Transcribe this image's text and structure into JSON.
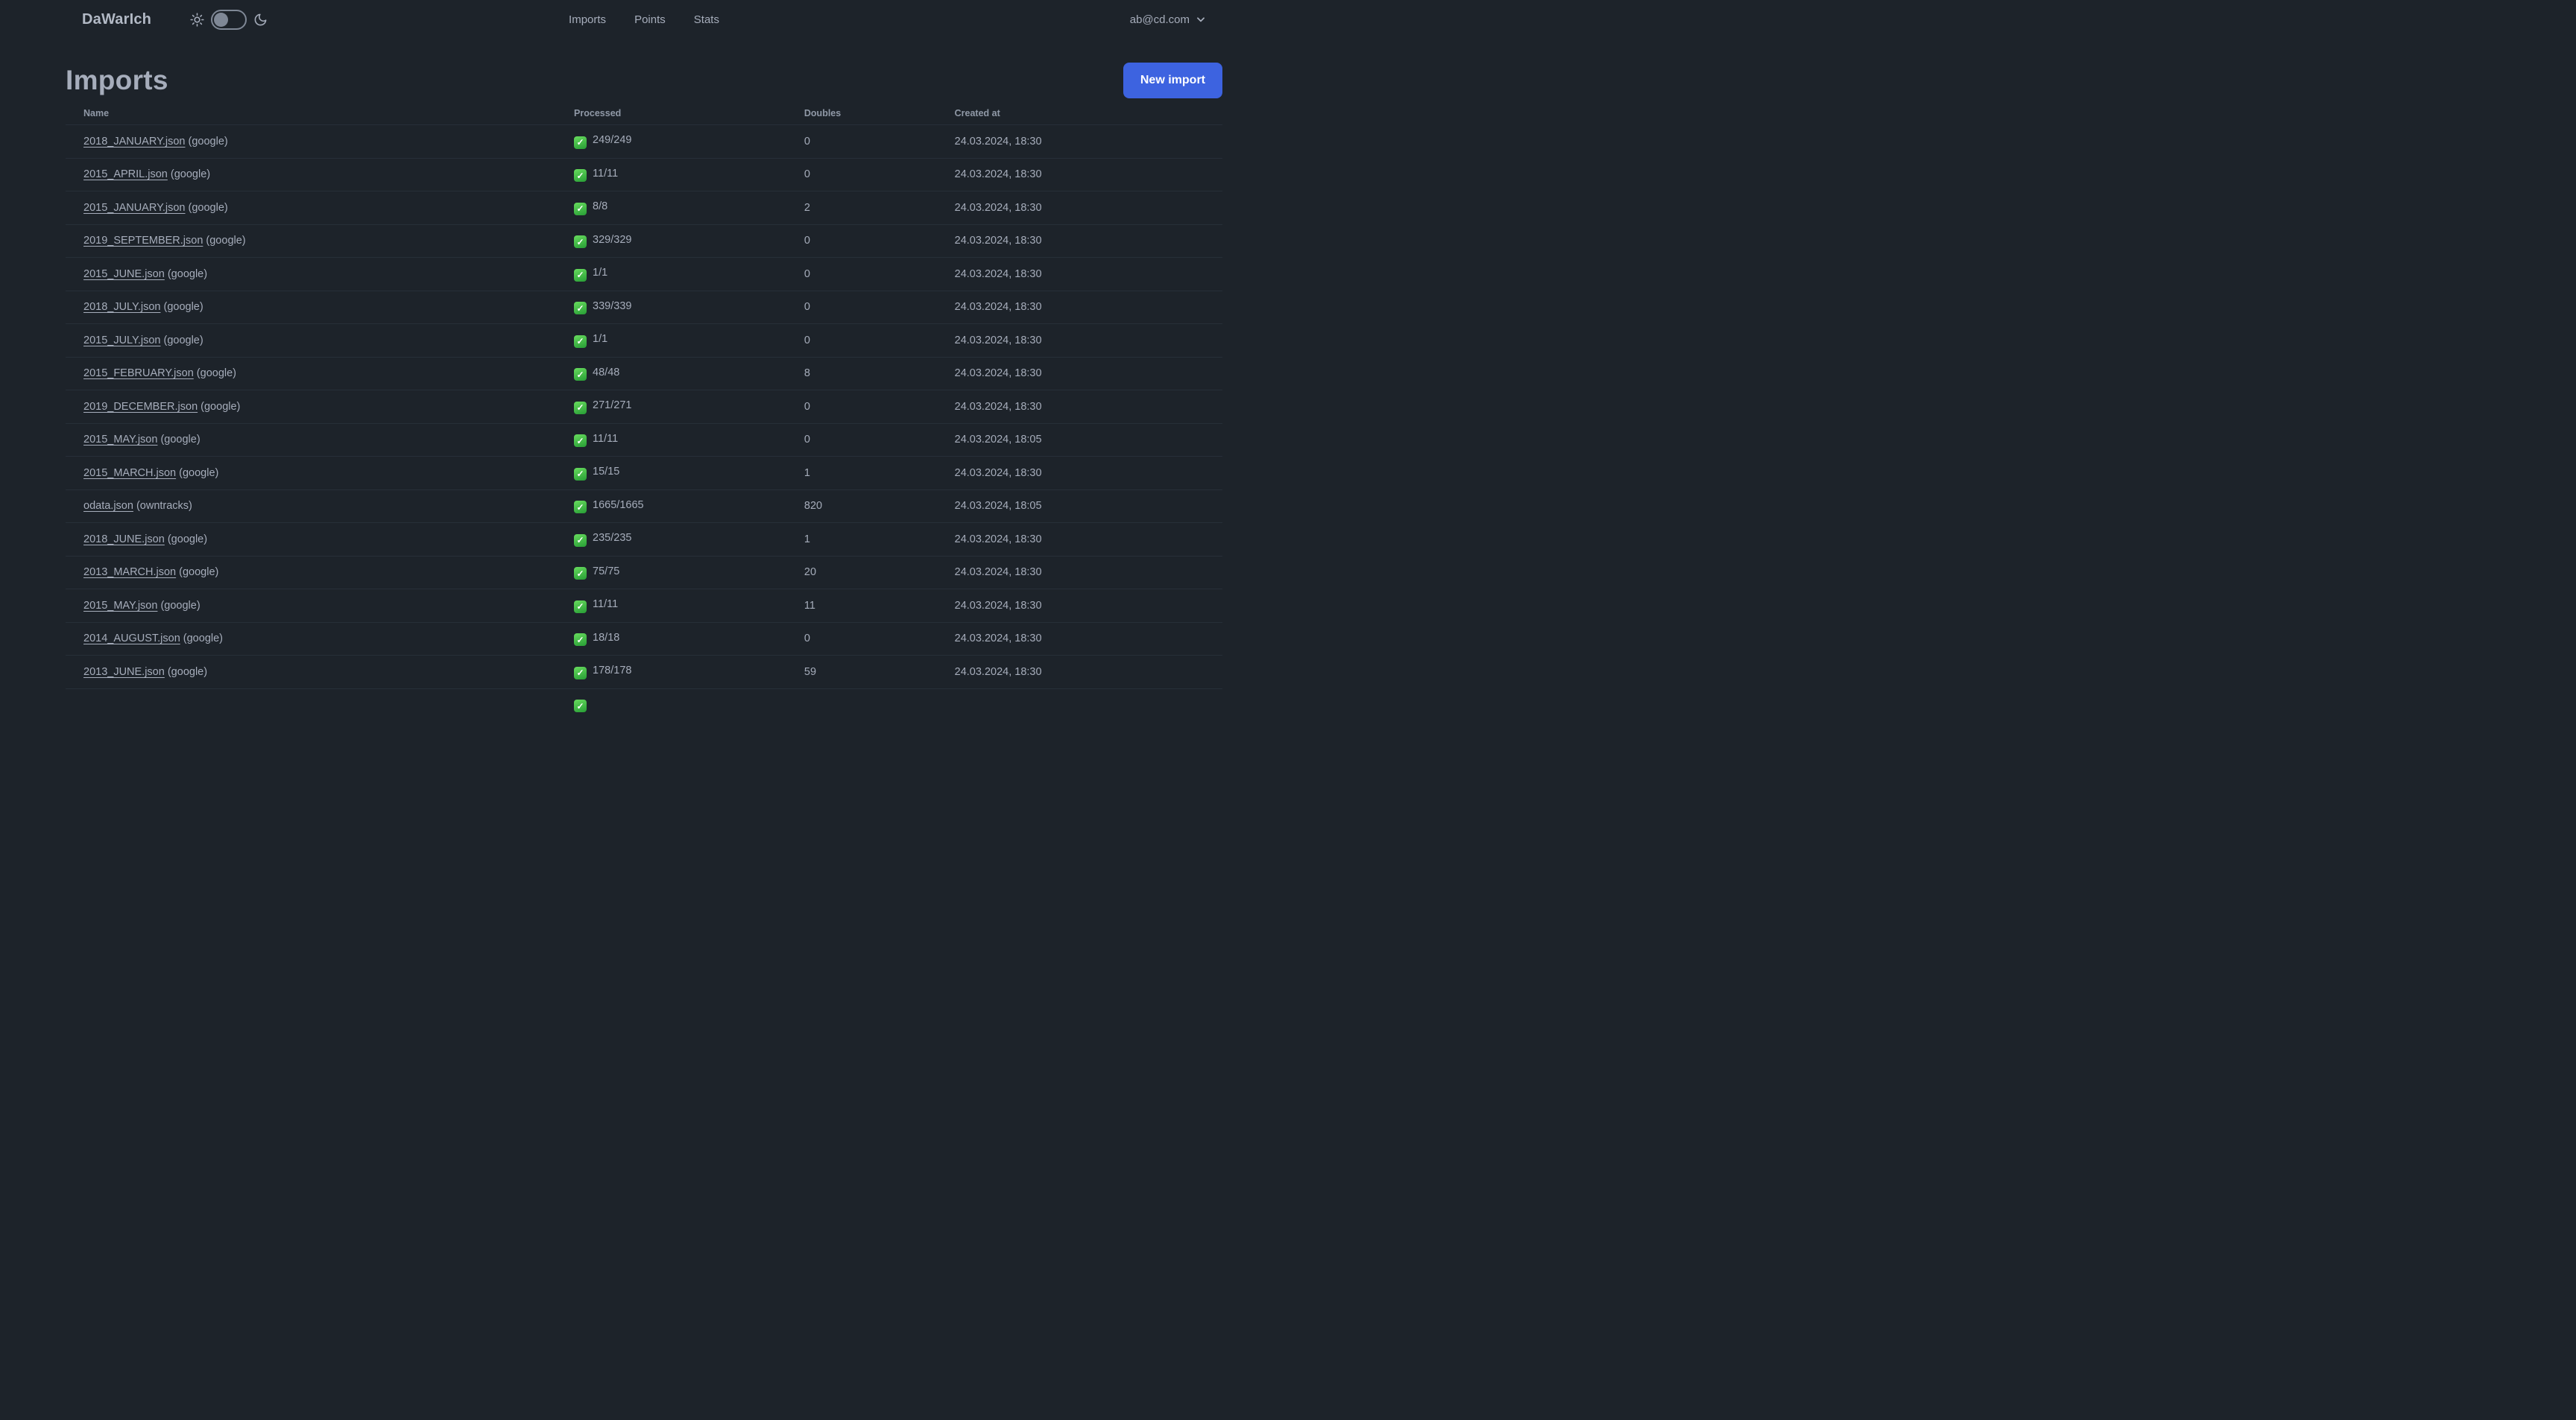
{
  "navbar": {
    "logo": "DaWarIch",
    "links": [
      {
        "label": "Imports"
      },
      {
        "label": "Points"
      },
      {
        "label": "Stats"
      }
    ],
    "account": {
      "email": "ab@cd.com"
    }
  },
  "page": {
    "title": "Imports",
    "new_import_button": "New import"
  },
  "table": {
    "columns": [
      "Name",
      "Processed",
      "Doubles",
      "Created at"
    ],
    "rows": [
      {
        "name": "2018_JANUARY.json",
        "source": "google",
        "status_icon": "check-emoji",
        "processed": "249/249",
        "doubles": 0,
        "created_at": "24.03.2024, 18:30"
      },
      {
        "name": "2015_APRIL.json",
        "source": "google",
        "status_icon": "check-emoji",
        "processed": "11/11",
        "doubles": 0,
        "created_at": "24.03.2024, 18:30"
      },
      {
        "name": "2015_JANUARY.json",
        "source": "google",
        "status_icon": "check-emoji",
        "processed": "8/8",
        "doubles": 2,
        "created_at": "24.03.2024, 18:30"
      },
      {
        "name": "2019_SEPTEMBER.json",
        "source": "google",
        "status_icon": "check-emoji",
        "processed": "329/329",
        "doubles": 0,
        "created_at": "24.03.2024, 18:30"
      },
      {
        "name": "2015_JUNE.json",
        "source": "google",
        "status_icon": "check-emoji",
        "processed": "1/1",
        "doubles": 0,
        "created_at": "24.03.2024, 18:30"
      },
      {
        "name": "2018_JULY.json",
        "source": "google",
        "status_icon": "check-emoji",
        "processed": "339/339",
        "doubles": 0,
        "created_at": "24.03.2024, 18:30"
      },
      {
        "name": "2015_JULY.json",
        "source": "google",
        "status_icon": "check-emoji",
        "processed": "1/1",
        "doubles": 0,
        "created_at": "24.03.2024, 18:30"
      },
      {
        "name": "2015_FEBRUARY.json",
        "source": "google",
        "status_icon": "check-emoji",
        "processed": "48/48",
        "doubles": 8,
        "created_at": "24.03.2024, 18:30"
      },
      {
        "name": "2019_DECEMBER.json",
        "source": "google",
        "status_icon": "check-emoji",
        "processed": "271/271",
        "doubles": 0,
        "created_at": "24.03.2024, 18:30"
      },
      {
        "name": "2015_MAY.json",
        "source": "google",
        "status_icon": "check-emoji",
        "processed": "11/11",
        "doubles": 0,
        "created_at": "24.03.2024, 18:05"
      },
      {
        "name": "2015_MARCH.json",
        "source": "google",
        "status_icon": "check-emoji",
        "processed": "15/15",
        "doubles": 1,
        "created_at": "24.03.2024, 18:30"
      },
      {
        "name": "odata.json",
        "source": "owntracks",
        "status_icon": "check-emoji",
        "processed": "1665/1665",
        "doubles": 820,
        "created_at": "24.03.2024, 18:05"
      },
      {
        "name": "2018_JUNE.json",
        "source": "google",
        "status_icon": "check-emoji",
        "processed": "235/235",
        "doubles": 1,
        "created_at": "24.03.2024, 18:30"
      },
      {
        "name": "2013_MARCH.json",
        "source": "google",
        "status_icon": "check-emoji",
        "processed": "75/75",
        "doubles": 20,
        "created_at": "24.03.2024, 18:30"
      },
      {
        "name": "2015_MAY.json",
        "source": "google",
        "status_icon": "check-emoji",
        "processed": "11/11",
        "doubles": 11,
        "created_at": "24.03.2024, 18:30"
      },
      {
        "name": "2014_AUGUST.json",
        "source": "google",
        "status_icon": "check-emoji",
        "processed": "18/18",
        "doubles": 0,
        "created_at": "24.03.2024, 18:30"
      },
      {
        "name": "2013_JUNE.json",
        "source": "google",
        "status_icon": "check-emoji",
        "processed": "178/178",
        "doubles": 59,
        "created_at": "24.03.2024, 18:30"
      }
    ],
    "partial_row": {
      "status_icon": "check-emoji"
    }
  },
  "colors": {
    "background": "#1d232a",
    "text": "#a6adbb",
    "muted_header": "#9099a7",
    "primary_button": "#3d63e0",
    "check_green": "#2da339",
    "divider": "#272f38"
  }
}
